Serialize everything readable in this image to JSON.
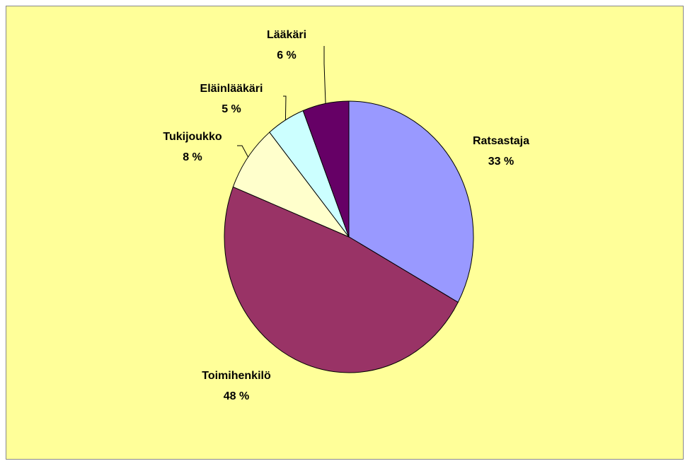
{
  "chart_data": {
    "type": "pie",
    "categories": [
      "Ratsastaja",
      "Toimihenkilö",
      "Tukijoukko",
      "Eläinlääkäri",
      "Lääkäri"
    ],
    "values": [
      33,
      48,
      8,
      5,
      6
    ],
    "value_labels": [
      "33 %",
      "48 %",
      "8 %",
      "5 %",
      "6 %"
    ],
    "colors": [
      "#9999ff",
      "#993366",
      "#ffffcc",
      "#ccffff",
      "#660066"
    ]
  }
}
